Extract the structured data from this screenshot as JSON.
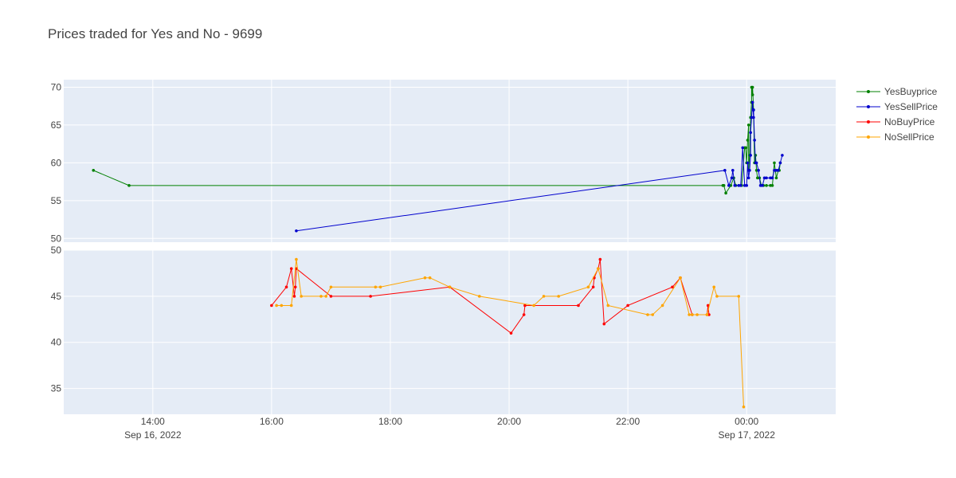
{
  "chart_data": {
    "type": "line",
    "title": "Prices traded for Yes and No - 9699",
    "x_range": [
      "2022-09-16 12:30",
      "2022-09-17 01:30"
    ],
    "x_ticks": [
      {
        "t": "2022-09-16 14:00",
        "label": "14:00",
        "sublabel": "Sep 16, 2022"
      },
      {
        "t": "2022-09-16 16:00",
        "label": "16:00",
        "sublabel": ""
      },
      {
        "t": "2022-09-16 18:00",
        "label": "18:00",
        "sublabel": ""
      },
      {
        "t": "2022-09-16 20:00",
        "label": "20:00",
        "sublabel": ""
      },
      {
        "t": "2022-09-16 22:00",
        "label": "22:00",
        "sublabel": ""
      },
      {
        "t": "2022-09-17 00:00",
        "label": "00:00",
        "sublabel": "Sep 17, 2022"
      }
    ],
    "grid": true,
    "legend_placement": "top-right",
    "panels": [
      {
        "ylim": [
          49.5,
          71
        ],
        "yticks": [
          50,
          55,
          60,
          65,
          70
        ],
        "series": [
          {
            "name": "YesBuyprice",
            "color": "#008000",
            "points": [
              [
                "2022-09-16 13:00",
                59
              ],
              [
                "2022-09-16 13:36",
                57
              ],
              [
                "2022-09-16 23:36",
                57
              ],
              [
                "2022-09-16 23:37",
                57
              ],
              [
                "2022-09-16 23:39",
                56
              ],
              [
                "2022-09-16 23:44",
                57
              ],
              [
                "2022-09-16 23:47",
                58
              ],
              [
                "2022-09-16 23:49",
                57
              ],
              [
                "2022-09-16 23:55",
                57
              ],
              [
                "2022-09-16 23:58",
                62
              ],
              [
                "2022-09-16 23:59",
                62
              ],
              [
                "2022-09-17 00:00",
                60
              ],
              [
                "2022-09-17 00:01",
                63
              ],
              [
                "2022-09-17 00:02",
                65
              ],
              [
                "2022-09-17 00:02",
                59
              ],
              [
                "2022-09-17 00:03",
                61
              ],
              [
                "2022-09-17 00:04",
                66
              ],
              [
                "2022-09-17 00:05",
                68
              ],
              [
                "2022-09-17 00:05",
                70
              ],
              [
                "2022-09-17 00:06",
                69
              ],
              [
                "2022-09-17 00:06",
                70
              ],
              [
                "2022-09-17 00:07",
                67
              ],
              [
                "2022-09-17 00:08",
                60
              ],
              [
                "2022-09-17 00:09",
                61
              ],
              [
                "2022-09-17 00:10",
                59
              ],
              [
                "2022-09-17 00:11",
                58
              ],
              [
                "2022-09-17 00:13",
                58
              ],
              [
                "2022-09-17 00:15",
                57
              ],
              [
                "2022-09-17 00:17",
                57
              ],
              [
                "2022-09-17 00:20",
                57
              ],
              [
                "2022-09-17 00:24",
                57
              ],
              [
                "2022-09-17 00:26",
                57
              ],
              [
                "2022-09-17 00:28",
                60
              ],
              [
                "2022-09-17 00:30",
                58
              ],
              [
                "2022-09-17 00:32",
                59
              ],
              [
                "2022-09-17 00:33",
                59
              ],
              [
                "2022-09-17 00:34",
                60
              ]
            ]
          },
          {
            "name": "YesSellPrice",
            "color": "#0000cd",
            "points": [
              [
                "2022-09-16 16:25",
                51
              ],
              [
                "2022-09-16 23:38",
                59
              ],
              [
                "2022-09-16 23:42",
                57
              ],
              [
                "2022-09-16 23:45",
                58
              ],
              [
                "2022-09-16 23:46",
                59
              ],
              [
                "2022-09-16 23:48",
                57
              ],
              [
                "2022-09-16 23:52",
                57
              ],
              [
                "2022-09-16 23:54",
                57
              ],
              [
                "2022-09-16 23:56",
                62
              ],
              [
                "2022-09-16 23:58",
                57
              ],
              [
                "2022-09-17 00:00",
                57
              ],
              [
                "2022-09-17 00:01",
                60
              ],
              [
                "2022-09-17 00:02",
                58
              ],
              [
                "2022-09-17 00:03",
                59
              ],
              [
                "2022-09-17 00:04",
                61
              ],
              [
                "2022-09-17 00:04",
                64
              ],
              [
                "2022-09-17 00:05",
                66
              ],
              [
                "2022-09-17 00:06",
                68
              ],
              [
                "2022-09-17 00:07",
                66
              ],
              [
                "2022-09-17 00:07",
                67
              ],
              [
                "2022-09-17 00:08",
                63
              ],
              [
                "2022-09-17 00:09",
                60
              ],
              [
                "2022-09-17 00:10",
                60
              ],
              [
                "2022-09-17 00:12",
                59
              ],
              [
                "2022-09-17 00:14",
                57
              ],
              [
                "2022-09-17 00:16",
                57
              ],
              [
                "2022-09-17 00:18",
                58
              ],
              [
                "2022-09-17 00:20",
                58
              ],
              [
                "2022-09-17 00:24",
                58
              ],
              [
                "2022-09-17 00:26",
                58
              ],
              [
                "2022-09-17 00:28",
                59
              ],
              [
                "2022-09-17 00:30",
                59
              ],
              [
                "2022-09-17 00:32",
                59
              ],
              [
                "2022-09-17 00:34",
                60
              ],
              [
                "2022-09-17 00:36",
                61
              ]
            ]
          }
        ]
      },
      {
        "ylim": [
          32.2,
          50
        ],
        "yticks": [
          35,
          40,
          45,
          50
        ],
        "series": [
          {
            "name": "NoBuyPrice",
            "color": "#ff0000",
            "points": [
              [
                "2022-09-16 16:00",
                44
              ],
              [
                "2022-09-16 16:15",
                46
              ],
              [
                "2022-09-16 16:20",
                48
              ],
              [
                "2022-09-16 16:23",
                45
              ],
              [
                "2022-09-16 16:24",
                46
              ],
              [
                "2022-09-16 16:25",
                48
              ],
              [
                "2022-09-16 17:00",
                45
              ],
              [
                "2022-09-16 17:40",
                45
              ],
              [
                "2022-09-16 19:00",
                46
              ],
              [
                "2022-09-16 20:02",
                41
              ],
              [
                "2022-09-16 20:15",
                43
              ],
              [
                "2022-09-16 20:16",
                44
              ],
              [
                "2022-09-16 21:10",
                44
              ],
              [
                "2022-09-16 21:25",
                46
              ],
              [
                "2022-09-16 21:26",
                47
              ],
              [
                "2022-09-16 21:30",
                48
              ],
              [
                "2022-09-16 21:32",
                49
              ],
              [
                "2022-09-16 21:36",
                42
              ],
              [
                "2022-09-16 22:00",
                44
              ],
              [
                "2022-09-16 22:45",
                46
              ],
              [
                "2022-09-16 22:53",
                47
              ],
              [
                "2022-09-16 23:05",
                43
              ],
              [
                "2022-09-16 23:20",
                43
              ],
              [
                "2022-09-16 23:21",
                44
              ],
              [
                "2022-09-16 23:22",
                43
              ]
            ]
          },
          {
            "name": "NoSellPrice",
            "color": "#ffa500",
            "points": [
              [
                "2022-09-16 16:05",
                44
              ],
              [
                "2022-09-16 16:10",
                44
              ],
              [
                "2022-09-16 16:20",
                44
              ],
              [
                "2022-09-16 16:25",
                49
              ],
              [
                "2022-09-16 16:30",
                45
              ],
              [
                "2022-09-16 16:50",
                45
              ],
              [
                "2022-09-16 16:55",
                45
              ],
              [
                "2022-09-16 17:00",
                46
              ],
              [
                "2022-09-16 17:45",
                46
              ],
              [
                "2022-09-16 17:50",
                46
              ],
              [
                "2022-09-16 18:35",
                47
              ],
              [
                "2022-09-16 18:40",
                47
              ],
              [
                "2022-09-16 19:00",
                46
              ],
              [
                "2022-09-16 19:30",
                45
              ],
              [
                "2022-09-16 20:25",
                44
              ],
              [
                "2022-09-16 20:35",
                45
              ],
              [
                "2022-09-16 20:50",
                45
              ],
              [
                "2022-09-16 21:20",
                46
              ],
              [
                "2022-09-16 21:30",
                48
              ],
              [
                "2022-09-16 21:40",
                44
              ],
              [
                "2022-09-16 22:20",
                43
              ],
              [
                "2022-09-16 22:25",
                43
              ],
              [
                "2022-09-16 22:35",
                44
              ],
              [
                "2022-09-16 22:53",
                47
              ],
              [
                "2022-09-16 23:02",
                43
              ],
              [
                "2022-09-16 23:05",
                43
              ],
              [
                "2022-09-16 23:10",
                43
              ],
              [
                "2022-09-16 23:20",
                43
              ],
              [
                "2022-09-16 23:27",
                46
              ],
              [
                "2022-09-16 23:30",
                45
              ],
              [
                "2022-09-16 23:52",
                45
              ],
              [
                "2022-09-16 23:57",
                33
              ]
            ]
          }
        ]
      }
    ]
  }
}
